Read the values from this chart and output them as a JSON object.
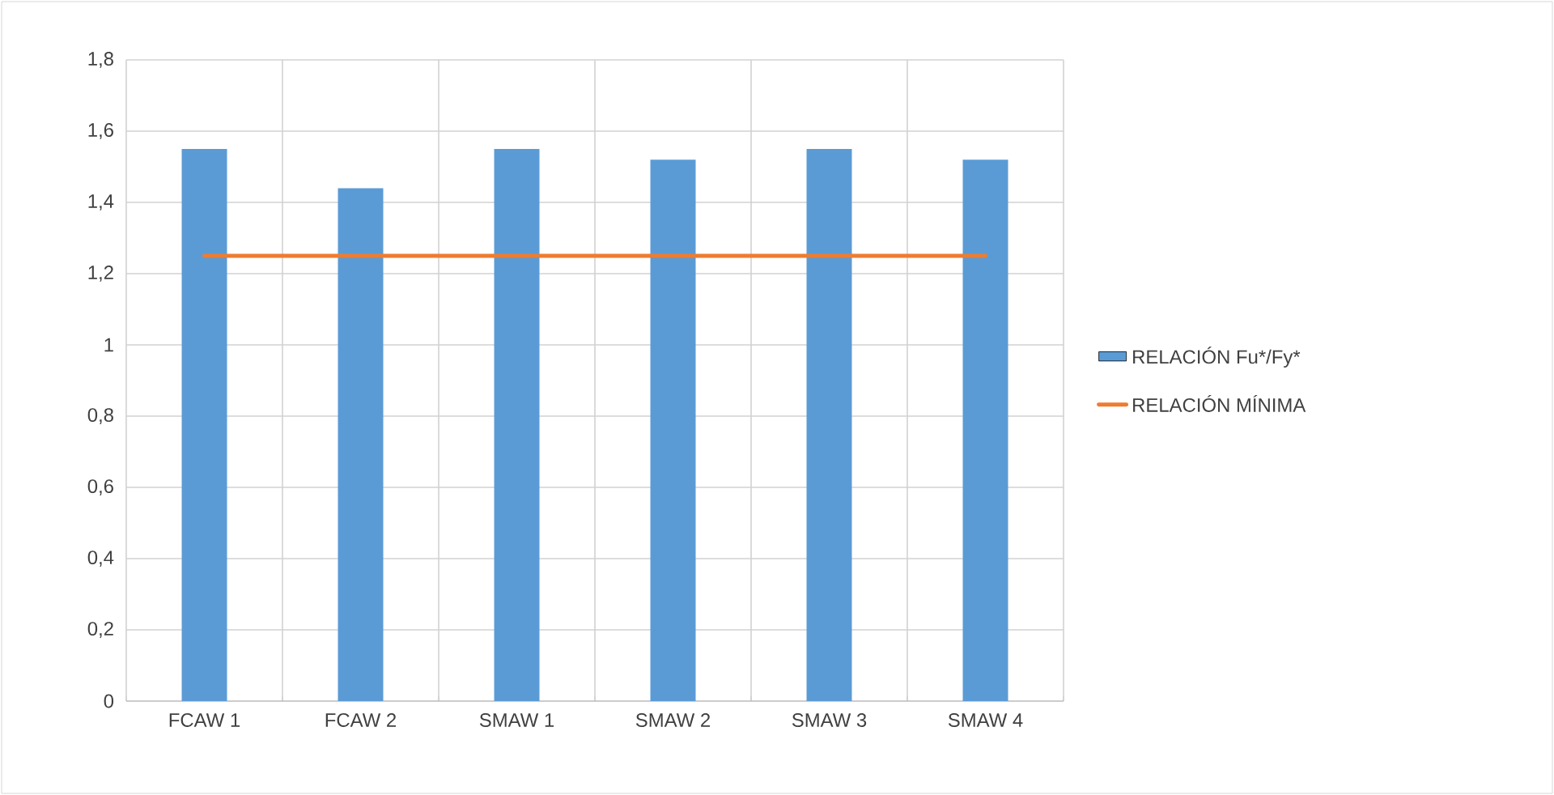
{
  "chart_data": {
    "type": "bar",
    "categories": [
      "FCAW 1",
      "FCAW 2",
      "SMAW 1",
      "SMAW 2",
      "SMAW 3",
      "SMAW 4"
    ],
    "series": [
      {
        "name": "RELACIÓN Fu*/Fy*",
        "color": "#5b9bd5",
        "values": [
          1.55,
          1.44,
          1.55,
          1.52,
          1.55,
          1.52
        ]
      },
      {
        "name": "RELACIÓN MÍNIMA",
        "type": "line",
        "color": "#ed7d31",
        "values": [
          1.25,
          1.25,
          1.25,
          1.25,
          1.25,
          1.25
        ]
      }
    ],
    "ylim": [
      0,
      1.8
    ],
    "yticks": [
      0,
      {
        "value": 0.2,
        "label": "0,2"
      },
      {
        "value": 0.4,
        "label": "0,4"
      },
      {
        "value": 0.6,
        "label": "0,6"
      },
      {
        "value": 0.8,
        "label": "0,8"
      },
      1,
      {
        "value": 1.2,
        "label": "1,2"
      },
      {
        "value": 1.4,
        "label": "1,4"
      },
      {
        "value": 1.6,
        "label": "1,6"
      },
      {
        "value": 1.8,
        "label": "1,8"
      }
    ],
    "grid": true,
    "legend": "right"
  }
}
